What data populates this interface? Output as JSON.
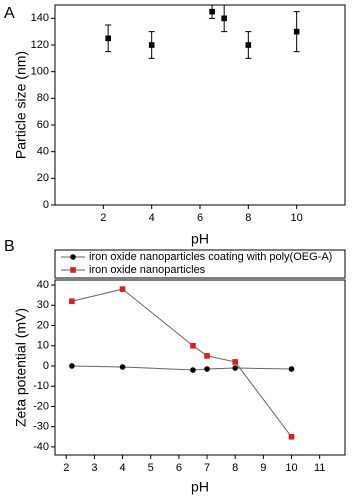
{
  "panels": [
    "A",
    "B"
  ],
  "chart_data": [
    {
      "type": "errorbar",
      "x_label": "pH",
      "y_label": "Particle size (nm)",
      "x": [
        2.2,
        4,
        6.5,
        7,
        8,
        10
      ],
      "series": [
        {
          "color": "#000000",
          "values": [
            125,
            120,
            145,
            140,
            120,
            130
          ],
          "errors": [
            10,
            10,
            5,
            10,
            10,
            15
          ]
        }
      ],
      "xlim": [
        0,
        12
      ],
      "xticks": [
        2,
        4,
        6,
        8,
        10
      ],
      "ylim": [
        0,
        150
      ],
      "yticks": [
        0,
        20,
        40,
        60,
        80,
        100,
        120,
        140
      ]
    },
    {
      "type": "line",
      "x_label": "pH",
      "y_label": "Zeta potential (mV)",
      "x": [
        2.2,
        4,
        6.5,
        7,
        8,
        10
      ],
      "series": [
        {
          "name": "iron oxide nanoparticles coating with poly(OEG-A)",
          "color": "#000000",
          "marker": "circle",
          "values": [
            0,
            -0.5,
            -2,
            -1.5,
            -1,
            -1.5
          ]
        },
        {
          "name": "iron oxide nanoparticles",
          "color": "#e41a1c",
          "marker": "square",
          "values": [
            32,
            38,
            10,
            5,
            2,
            -35
          ]
        }
      ],
      "xlim": [
        1.6,
        11.9
      ],
      "xticks": [
        2,
        3,
        4,
        5,
        6,
        7,
        8,
        9,
        10,
        11
      ],
      "ylim": [
        -44,
        42.5
      ],
      "yticks": [
        -40,
        -30,
        -20,
        -10,
        0,
        10,
        20,
        30,
        40
      ],
      "legend": "top"
    }
  ]
}
